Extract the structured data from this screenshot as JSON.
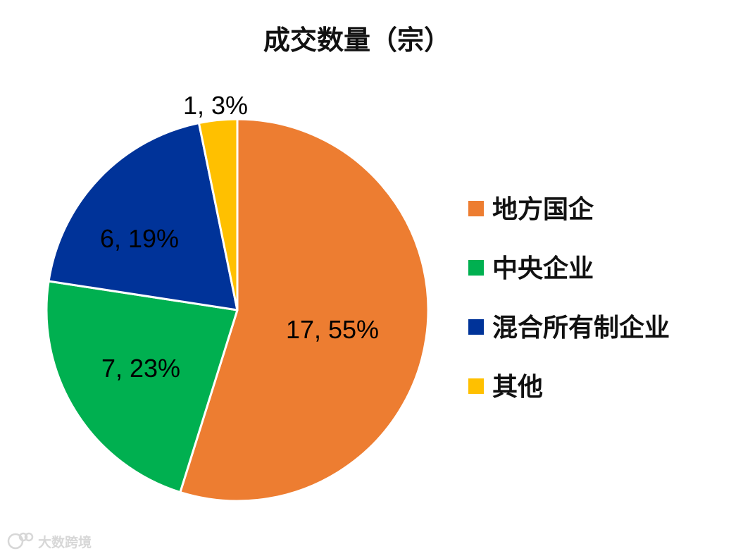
{
  "chart_data": {
    "type": "pie",
    "title": "成交数量（宗）",
    "slices": [
      {
        "name": "地方国企",
        "value": 17,
        "percent": "55%",
        "label": "17, 55%",
        "color": "#ED7D31"
      },
      {
        "name": "中央企业",
        "value": 7,
        "percent": "23%",
        "label": "7, 23%",
        "color": "#00B050"
      },
      {
        "name": "混合所有制企业",
        "value": 6,
        "percent": "19%",
        "label": "6, 19%",
        "color": "#003399"
      },
      {
        "name": "其他",
        "value": 1,
        "percent": "3%",
        "label": "1, 3%",
        "color": "#FFC000"
      }
    ],
    "legend_position": "right",
    "start_angle": "12 o'clock",
    "direction": "clockwise"
  },
  "watermark": {
    "text": "大数跨境"
  }
}
